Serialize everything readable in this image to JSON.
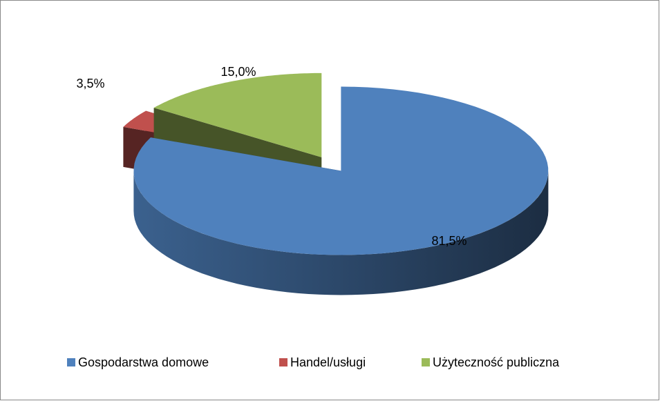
{
  "chart_data": {
    "type": "pie",
    "categories": [
      "Gospodarstwa domowe",
      "Handel/usługi",
      "Użyteczność publiczna"
    ],
    "values": [
      81.5,
      3.5,
      15.0
    ],
    "value_labels": [
      "81,5%",
      "3,5%",
      "15,0%"
    ],
    "colors": [
      "#4f81bd",
      "#c0504d",
      "#9bbb59"
    ],
    "legend": "bottom"
  }
}
